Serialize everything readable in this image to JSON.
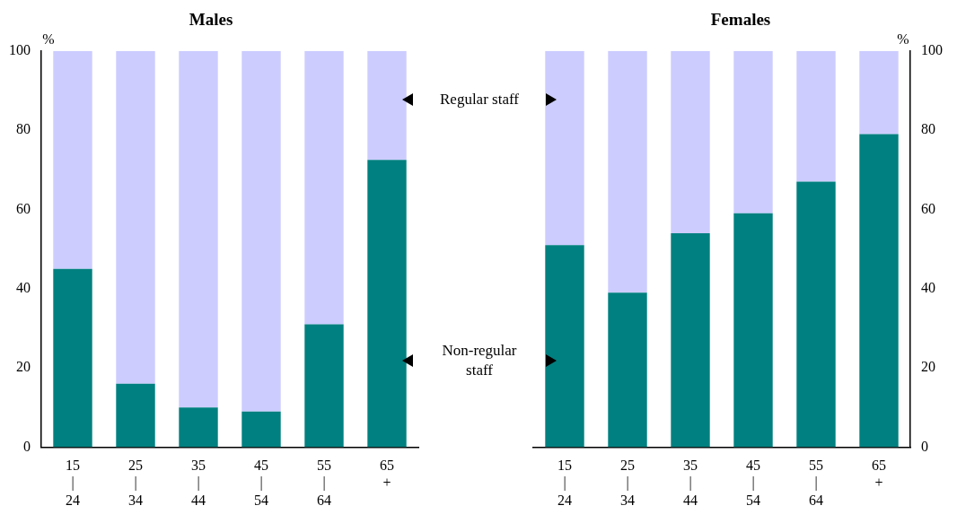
{
  "chart_data": [
    {
      "type": "bar",
      "title": "Males",
      "ylabel": "%",
      "stacked": true,
      "grid": false,
      "categories": [
        "15\n|\n24",
        "25\n|\n34",
        "35\n|\n44",
        "45\n|\n54",
        "55\n|\n64",
        "65\n+"
      ],
      "ylim": [
        0,
        100
      ],
      "yticks": [
        0,
        20,
        40,
        60,
        80,
        100
      ],
      "series": [
        {
          "name": "Non-regular staff",
          "color": "#008080",
          "values": [
            45,
            16,
            10,
            9,
            31,
            72.5
          ]
        },
        {
          "name": "Regular staff",
          "color": "#ccccff",
          "values": [
            55,
            84,
            90,
            91,
            69,
            27.5
          ]
        }
      ]
    },
    {
      "type": "bar",
      "title": "Females",
      "y2label": "%",
      "stacked": true,
      "grid": false,
      "categories": [
        "15\n|\n24",
        "25\n|\n34",
        "35\n|\n44",
        "45\n|\n54",
        "55\n|\n64",
        "65\n+"
      ],
      "y2lim": [
        0,
        100
      ],
      "y2ticks": [
        0,
        20,
        40,
        60,
        80,
        100
      ],
      "series": [
        {
          "color": "#008080",
          "axis": "y2",
          "values": [
            51,
            39,
            54,
            59,
            67,
            79
          ]
        },
        {
          "color": "#ccccff",
          "axis": "y2",
          "values": [
            49,
            61,
            46,
            41,
            33,
            21
          ]
        }
      ]
    }
  ]
}
